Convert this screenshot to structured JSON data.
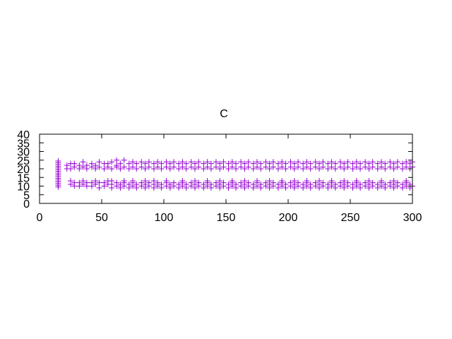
{
  "chart_data": {
    "type": "scatter",
    "title": "C",
    "xlabel": "",
    "ylabel": "",
    "xlim": [
      0,
      300
    ],
    "ylim": [
      0,
      40
    ],
    "xticks": [
      0,
      50,
      100,
      150,
      200,
      250,
      300
    ],
    "yticks": [
      0,
      5,
      10,
      15,
      20,
      25,
      30,
      35,
      40
    ],
    "grid": false,
    "legend": "none",
    "marker": "plus",
    "series": [
      {
        "color": "#9400d3",
        "x": [
          15,
          15,
          15,
          15,
          15,
          15,
          15,
          15,
          15,
          15,
          15,
          15,
          15,
          15,
          15,
          15,
          22,
          22,
          25,
          25,
          25,
          25,
          28,
          28,
          28,
          28,
          32,
          32,
          32,
          32,
          35,
          35,
          35,
          35,
          38,
          38,
          38,
          38,
          42,
          42,
          42,
          42,
          45,
          45,
          45,
          45,
          48,
          48,
          48,
          48,
          52,
          52,
          52,
          52,
          55,
          55,
          55,
          55,
          58,
          58,
          58,
          58,
          58,
          62,
          62,
          62,
          62,
          62,
          65,
          65,
          65,
          65,
          68,
          68,
          68,
          68,
          68,
          72,
          72,
          72,
          72,
          75,
          75,
          75,
          75,
          75,
          78,
          78,
          78,
          78,
          82,
          82,
          82,
          82,
          85,
          85,
          85,
          85,
          85,
          88,
          88,
          88,
          88,
          92,
          92,
          92,
          92,
          92,
          95,
          95,
          95,
          95,
          98,
          98,
          98,
          98,
          102,
          102,
          102,
          102,
          102,
          105,
          105,
          105,
          105,
          108,
          108,
          108,
          108,
          112,
          112,
          112,
          112,
          115,
          115,
          115,
          115,
          115,
          118,
          118,
          118,
          118,
          122,
          122,
          122,
          122,
          125,
          125,
          125,
          125,
          125,
          128,
          128,
          128,
          128,
          132,
          132,
          132,
          132,
          135,
          135,
          135,
          135,
          135,
          138,
          138,
          138,
          138,
          142,
          142,
          142,
          142,
          145,
          145,
          145,
          145,
          145,
          148,
          148,
          148,
          148,
          152,
          152,
          152,
          152,
          155,
          155,
          155,
          155,
          155,
          158,
          158,
          158,
          158,
          162,
          162,
          162,
          162,
          165,
          165,
          165,
          165,
          165,
          168,
          168,
          168,
          168,
          172,
          172,
          172,
          172,
          175,
          175,
          175,
          175,
          175,
          178,
          178,
          178,
          178,
          182,
          182,
          182,
          182,
          185,
          185,
          185,
          185,
          185,
          188,
          188,
          188,
          188,
          192,
          192,
          192,
          192,
          195,
          195,
          195,
          195,
          195,
          198,
          198,
          198,
          198,
          202,
          202,
          202,
          202,
          205,
          205,
          205,
          205,
          205,
          208,
          208,
          208,
          208,
          212,
          212,
          212,
          212,
          215,
          215,
          215,
          215,
          215,
          218,
          218,
          218,
          218,
          222,
          222,
          222,
          222,
          225,
          225,
          225,
          225,
          225,
          228,
          228,
          228,
          228,
          232,
          232,
          232,
          232,
          235,
          235,
          235,
          235,
          235,
          238,
          238,
          238,
          238,
          242,
          242,
          242,
          242,
          245,
          245,
          245,
          245,
          245,
          248,
          248,
          248,
          248,
          252,
          252,
          252,
          252,
          255,
          255,
          255,
          255,
          255,
          258,
          258,
          258,
          258,
          262,
          262,
          262,
          262,
          265,
          265,
          265,
          265,
          265,
          268,
          268,
          268,
          268,
          272,
          272,
          272,
          272,
          275,
          275,
          275,
          275,
          275,
          278,
          278,
          278,
          278,
          282,
          282,
          282,
          282,
          285,
          285,
          285,
          285,
          285,
          288,
          288,
          288,
          288,
          292,
          292,
          292,
          292,
          295,
          295,
          295,
          295,
          295,
          298,
          298,
          298,
          298,
          300,
          300,
          300
        ],
        "y": [
          9.5,
          10.5,
          11.5,
          12.5,
          13.5,
          14.5,
          15.5,
          16.5,
          17.5,
          18.5,
          19.5,
          20.5,
          21.5,
          22.5,
          23.5,
          24.5,
          20,
          22,
          11,
          13,
          20,
          23,
          10,
          12,
          21,
          23,
          10,
          12,
          20,
          22,
          11,
          13,
          21,
          24,
          10,
          12,
          20,
          22,
          10,
          12,
          21,
          23,
          11,
          13,
          20,
          22,
          9,
          12,
          21,
          24,
          10,
          12,
          20,
          23,
          11,
          13,
          21,
          23,
          9,
          11,
          13,
          20,
          24,
          10,
          12,
          21,
          22,
          25,
          9,
          11,
          20,
          23,
          10,
          12,
          13,
          21,
          25,
          9,
          11,
          20,
          23,
          10,
          12,
          13,
          21,
          24,
          9,
          11,
          20,
          23,
          10,
          12,
          21,
          24,
          9,
          11,
          13,
          20,
          23,
          10,
          12,
          21,
          24,
          9,
          11,
          13,
          20,
          23,
          10,
          12,
          21,
          24,
          9,
          11,
          20,
          23,
          10,
          12,
          13,
          21,
          24,
          9,
          11,
          20,
          23,
          10,
          12,
          21,
          24,
          9,
          11,
          20,
          23,
          10,
          12,
          13,
          21,
          24,
          9,
          11,
          20,
          23,
          10,
          12,
          21,
          24,
          9,
          11,
          13,
          20,
          23,
          10,
          12,
          21,
          24,
          9,
          11,
          20,
          23,
          10,
          12,
          13,
          21,
          24,
          9,
          11,
          20,
          23,
          10,
          12,
          21,
          24,
          9,
          11,
          13,
          20,
          23,
          10,
          12,
          21,
          24,
          9,
          11,
          20,
          23,
          10,
          12,
          13,
          21,
          24,
          9,
          11,
          20,
          23,
          10,
          12,
          21,
          24,
          9,
          11,
          13,
          20,
          23,
          10,
          12,
          21,
          24,
          9,
          11,
          20,
          23,
          10,
          12,
          13,
          21,
          24,
          9,
          11,
          20,
          23,
          10,
          12,
          21,
          24,
          9,
          11,
          13,
          20,
          23,
          10,
          12,
          21,
          24,
          9,
          11,
          20,
          23,
          10,
          12,
          13,
          21,
          24,
          9,
          11,
          20,
          23,
          10,
          12,
          21,
          24,
          9,
          11,
          13,
          20,
          23,
          10,
          12,
          21,
          24,
          9,
          11,
          20,
          23,
          10,
          12,
          13,
          21,
          24,
          9,
          11,
          20,
          23,
          10,
          12,
          21,
          24,
          9,
          11,
          13,
          20,
          23,
          10,
          12,
          21,
          24,
          9,
          11,
          20,
          23,
          10,
          12,
          13,
          21,
          24,
          9,
          11,
          20,
          23,
          10,
          12,
          21,
          24,
          9,
          11,
          13,
          20,
          23,
          10,
          12,
          21,
          24,
          9,
          11,
          20,
          23,
          10,
          12,
          13,
          21,
          24,
          9,
          11,
          20,
          23,
          10,
          12,
          21,
          24,
          9,
          11,
          13,
          20,
          23,
          10,
          12,
          21,
          24,
          9,
          11,
          20,
          23,
          10,
          12,
          13,
          21,
          24,
          9,
          11,
          20,
          23,
          10,
          12,
          21,
          24,
          9,
          11,
          13,
          20,
          23,
          10,
          12,
          21,
          24,
          9,
          11,
          20,
          23,
          10,
          12,
          13,
          21,
          24,
          9,
          11,
          20,
          23,
          10,
          21,
          24
        ]
      }
    ]
  }
}
